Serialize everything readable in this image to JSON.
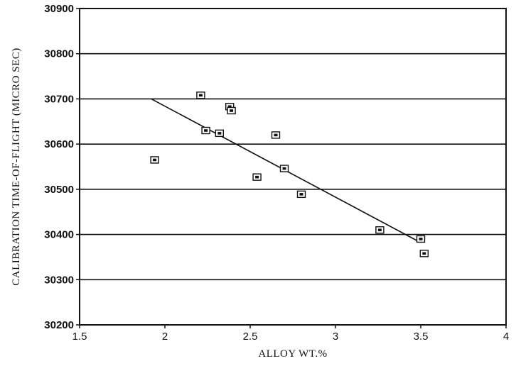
{
  "chart_data": {
    "type": "scatter",
    "title": "",
    "xlabel": "ALLOY WT.%",
    "ylabel": "CALIBRATION TIME-OF-FLIGHT (MICRO SEC)",
    "xlim": [
      1.5,
      4
    ],
    "ylim": [
      30200,
      30900
    ],
    "x_ticks": [
      "1.5",
      "2",
      "2.5",
      "3",
      "3.5",
      "4"
    ],
    "y_ticks": [
      "30200",
      "30300",
      "30400",
      "30500",
      "30600",
      "30700",
      "30800",
      "30900"
    ],
    "grid": "horizontal",
    "marker": "square",
    "series": [
      {
        "points": [
          {
            "x": 1.94,
            "y": 30565
          },
          {
            "x": 2.21,
            "y": 30708
          },
          {
            "x": 2.24,
            "y": 30630
          },
          {
            "x": 2.32,
            "y": 30624
          },
          {
            "x": 2.38,
            "y": 30683
          },
          {
            "x": 2.39,
            "y": 30674
          },
          {
            "x": 2.54,
            "y": 30527
          },
          {
            "x": 2.65,
            "y": 30620
          },
          {
            "x": 2.7,
            "y": 30546
          },
          {
            "x": 2.8,
            "y": 30489
          },
          {
            "x": 3.26,
            "y": 30410
          },
          {
            "x": 3.5,
            "y": 30390
          },
          {
            "x": 3.52,
            "y": 30358
          }
        ]
      }
    ],
    "trendline": {
      "x": [
        1.92,
        3.48
      ],
      "y": [
        30700,
        30386
      ]
    }
  },
  "colors": {
    "ink": "#111111",
    "background": "#ffffff"
  }
}
